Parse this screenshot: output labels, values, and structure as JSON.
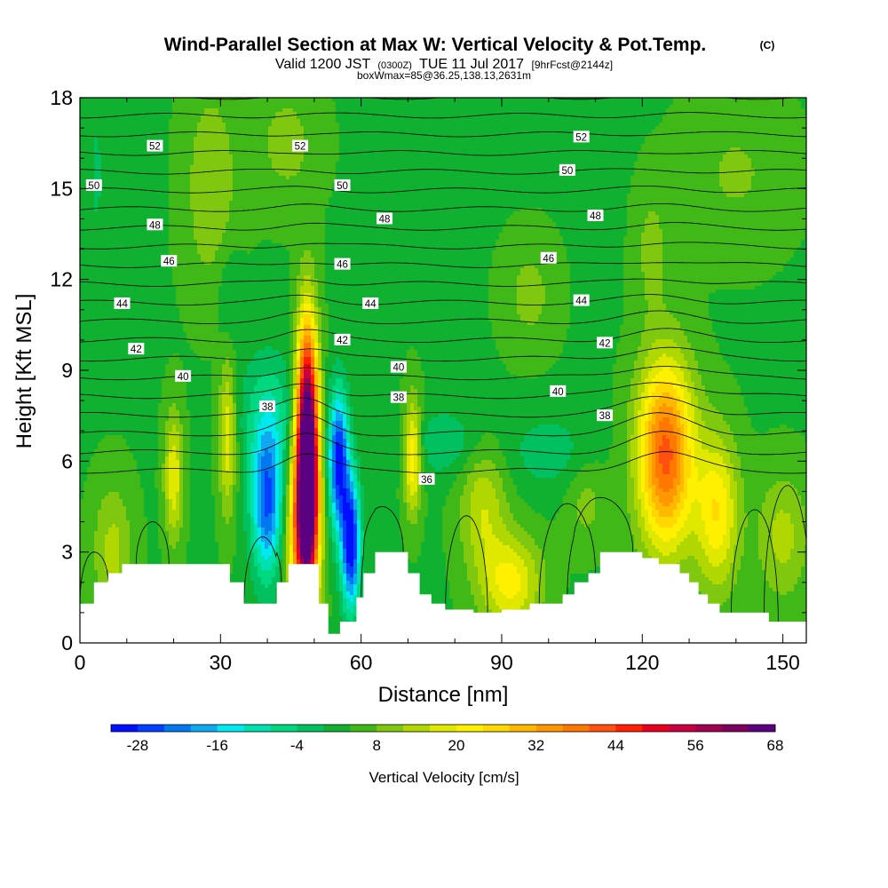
{
  "chart_data": {
    "type": "heatmap",
    "title": "Wind-Parallel Section at Max W: Vertical Velocity & Pot.Temp.",
    "title_mark": "(C)",
    "subtitle": {
      "valid_prefix": "Valid 1200 JST",
      "utc": "(0300Z)",
      "date": "TUE 11 Jul 2017",
      "forecast": "[9hrFcst@2144z]"
    },
    "subtitle2": "boxWmax=85@36.25,138.13,2631m",
    "xlabel": "Distance [nm]",
    "ylabel": "Height [Kft MSL]",
    "xlim": [
      0,
      155
    ],
    "ylim": [
      0,
      18
    ],
    "x_ticks": [
      0,
      30,
      60,
      90,
      120,
      150
    ],
    "y_ticks": [
      0,
      3,
      6,
      9,
      12,
      15,
      18
    ],
    "colorbar": {
      "label": "Vertical Velocity [cm/s]",
      "min": -32,
      "step": 4,
      "tick_labels": [
        "-28",
        "-16",
        "-4",
        "8",
        "20",
        "32",
        "44",
        "56",
        "68"
      ],
      "colors": [
        "#0010ff",
        "#0040ff",
        "#0078f0",
        "#10a8f0",
        "#00e8f0",
        "#00e0b0",
        "#00d880",
        "#00c060",
        "#10b030",
        "#40b818",
        "#80c810",
        "#b0d800",
        "#e0e800",
        "#fff000",
        "#ffd800",
        "#ffb800",
        "#ff9800",
        "#ff7800",
        "#ff5010",
        "#ff2000",
        "#e80020",
        "#c80040",
        "#a00050",
        "#800060",
        "#5a0080"
      ]
    },
    "theta_labels": [
      {
        "value": "52",
        "x": 16,
        "y": 16.4
      },
      {
        "value": "52",
        "x": 47,
        "y": 16.4
      },
      {
        "value": "52",
        "x": 107,
        "y": 16.7
      },
      {
        "value": "50",
        "x": 3,
        "y": 15.1
      },
      {
        "value": "50",
        "x": 56,
        "y": 15.1
      },
      {
        "value": "50",
        "x": 104,
        "y": 15.6
      },
      {
        "value": "48",
        "x": 16,
        "y": 13.8
      },
      {
        "value": "48",
        "x": 65,
        "y": 14.0
      },
      {
        "value": "48",
        "x": 110,
        "y": 14.1
      },
      {
        "value": "46",
        "x": 19,
        "y": 12.6
      },
      {
        "value": "46",
        "x": 56,
        "y": 12.5
      },
      {
        "value": "46",
        "x": 100,
        "y": 12.7
      },
      {
        "value": "44",
        "x": 9,
        "y": 11.2
      },
      {
        "value": "44",
        "x": 62,
        "y": 11.2
      },
      {
        "value": "44",
        "x": 107,
        "y": 11.3
      },
      {
        "value": "42",
        "x": 12,
        "y": 9.7
      },
      {
        "value": "42",
        "x": 56,
        "y": 10.0
      },
      {
        "value": "42",
        "x": 112,
        "y": 9.9
      },
      {
        "value": "40",
        "x": 22,
        "y": 8.8
      },
      {
        "value": "40",
        "x": 68,
        "y": 9.1
      },
      {
        "value": "40",
        "x": 102,
        "y": 8.3
      },
      {
        "value": "38",
        "x": 40,
        "y": 7.8
      },
      {
        "value": "38",
        "x": 68,
        "y": 8.1
      },
      {
        "value": "38",
        "x": 112,
        "y": 7.5
      },
      {
        "value": "36",
        "x": 74,
        "y": 5.4
      }
    ],
    "velocity_features": [
      {
        "x": 48.5,
        "y": 6.2,
        "sx": 1.6,
        "sy": 2.8,
        "w": 82
      },
      {
        "x": 47.5,
        "y": 3.6,
        "sx": 2.4,
        "sy": 2.0,
        "w": 30
      },
      {
        "x": 55.2,
        "y": 6.0,
        "sx": 1.5,
        "sy": 1.6,
        "w": -34
      },
      {
        "x": 57.8,
        "y": 3.3,
        "sx": 1.4,
        "sy": 1.5,
        "w": -36
      },
      {
        "x": 40.0,
        "y": 4.6,
        "sx": 2.4,
        "sy": 1.7,
        "w": -28
      },
      {
        "x": 40.5,
        "y": 7.5,
        "sx": 4.5,
        "sy": 1.5,
        "w": -10
      },
      {
        "x": 20.0,
        "y": 5.5,
        "sx": 1.4,
        "sy": 1.5,
        "w": 16
      },
      {
        "x": 31.5,
        "y": 6.8,
        "sx": 1.3,
        "sy": 1.8,
        "w": 16
      },
      {
        "x": 71.0,
        "y": 6.2,
        "sx": 1.3,
        "sy": 1.3,
        "w": 22
      },
      {
        "x": 125.0,
        "y": 6.2,
        "sx": 4.2,
        "sy": 2.2,
        "w": 38
      },
      {
        "x": 136.0,
        "y": 4.3,
        "sx": 3.2,
        "sy": 1.8,
        "w": 20
      },
      {
        "x": 92.0,
        "y": 2.0,
        "sx": 4.5,
        "sy": 1.1,
        "w": 18
      },
      {
        "x": 86.0,
        "y": 4.5,
        "sx": 3.5,
        "sy": 1.5,
        "w": 12
      },
      {
        "x": 78.0,
        "y": 6.6,
        "sx": 6.0,
        "sy": 0.8,
        "w": -7
      },
      {
        "x": 100.0,
        "y": 6.3,
        "sx": 6.0,
        "sy": 0.9,
        "w": -6
      },
      {
        "x": 108.0,
        "y": 4.6,
        "sx": 3.0,
        "sy": 1.0,
        "w": 6
      },
      {
        "x": 150.0,
        "y": 3.5,
        "sx": 4.0,
        "sy": 1.5,
        "w": 10
      },
      {
        "x": 7.0,
        "y": 3.0,
        "sx": 3.0,
        "sy": 1.6,
        "w": 10
      },
      {
        "x": 28.0,
        "y": 15.0,
        "sx": 4.0,
        "sy": 2.5,
        "w": 8
      },
      {
        "x": 44.0,
        "y": 16.5,
        "sx": 5.0,
        "sy": 1.5,
        "w": 6
      },
      {
        "x": 96.0,
        "y": 11.5,
        "sx": 4.0,
        "sy": 1.3,
        "w": 6
      },
      {
        "x": 122.0,
        "y": 13.0,
        "sx": 2.5,
        "sy": 1.5,
        "w": 6
      },
      {
        "x": 32.0,
        "y": 11.5,
        "sx": 2.0,
        "sy": 1.2,
        "w": -5
      },
      {
        "x": 3.5,
        "y": 15.5,
        "sx": 1.0,
        "sy": 1.5,
        "w": -5
      },
      {
        "x": 140.0,
        "y": 15.5,
        "sx": 8.0,
        "sy": 1.8,
        "w": 5
      }
    ],
    "terrain_kft": [
      [
        0,
        1.3
      ],
      [
        3,
        1.3
      ],
      [
        3,
        2.0
      ],
      [
        6,
        2.0
      ],
      [
        6,
        2.3
      ],
      [
        9,
        2.3
      ],
      [
        9,
        2.6
      ],
      [
        32,
        2.6
      ],
      [
        32,
        2.0
      ],
      [
        35,
        2.0
      ],
      [
        35,
        1.3
      ],
      [
        42,
        1.3
      ],
      [
        42,
        2.0
      ],
      [
        44.5,
        2.0
      ],
      [
        44.5,
        2.6
      ],
      [
        51,
        2.6
      ],
      [
        51,
        1.3
      ],
      [
        53,
        1.3
      ],
      [
        53,
        0.3
      ],
      [
        55.5,
        0.3
      ],
      [
        55.5,
        0.7
      ],
      [
        59,
        0.7
      ],
      [
        59,
        1.5
      ],
      [
        60.5,
        1.5
      ],
      [
        60.5,
        2.3
      ],
      [
        63,
        2.3
      ],
      [
        63,
        3.0
      ],
      [
        70,
        3.0
      ],
      [
        70,
        2.3
      ],
      [
        72.5,
        2.3
      ],
      [
        72.5,
        1.6
      ],
      [
        75,
        1.6
      ],
      [
        75,
        1.3
      ],
      [
        78,
        1.3
      ],
      [
        78,
        1.1
      ],
      [
        84,
        1.1
      ],
      [
        84,
        1.0
      ],
      [
        90,
        1.0
      ],
      [
        90,
        1.1
      ],
      [
        96,
        1.1
      ],
      [
        96,
        1.3
      ],
      [
        103,
        1.3
      ],
      [
        103,
        1.6
      ],
      [
        105.5,
        1.6
      ],
      [
        105.5,
        2.0
      ],
      [
        108.5,
        2.0
      ],
      [
        108.5,
        2.3
      ],
      [
        111,
        2.3
      ],
      [
        111,
        3.0
      ],
      [
        120,
        3.0
      ],
      [
        120,
        2.8
      ],
      [
        123.5,
        2.8
      ],
      [
        123.5,
        2.6
      ],
      [
        128,
        2.6
      ],
      [
        128,
        2.3
      ],
      [
        130,
        2.3
      ],
      [
        130,
        2.0
      ],
      [
        132,
        2.0
      ],
      [
        132,
        1.6
      ],
      [
        134,
        1.6
      ],
      [
        134,
        1.3
      ],
      [
        136.5,
        1.3
      ],
      [
        136.5,
        1.0
      ],
      [
        147,
        1.0
      ],
      [
        147,
        0.7
      ],
      [
        155,
        0.7
      ]
    ]
  }
}
